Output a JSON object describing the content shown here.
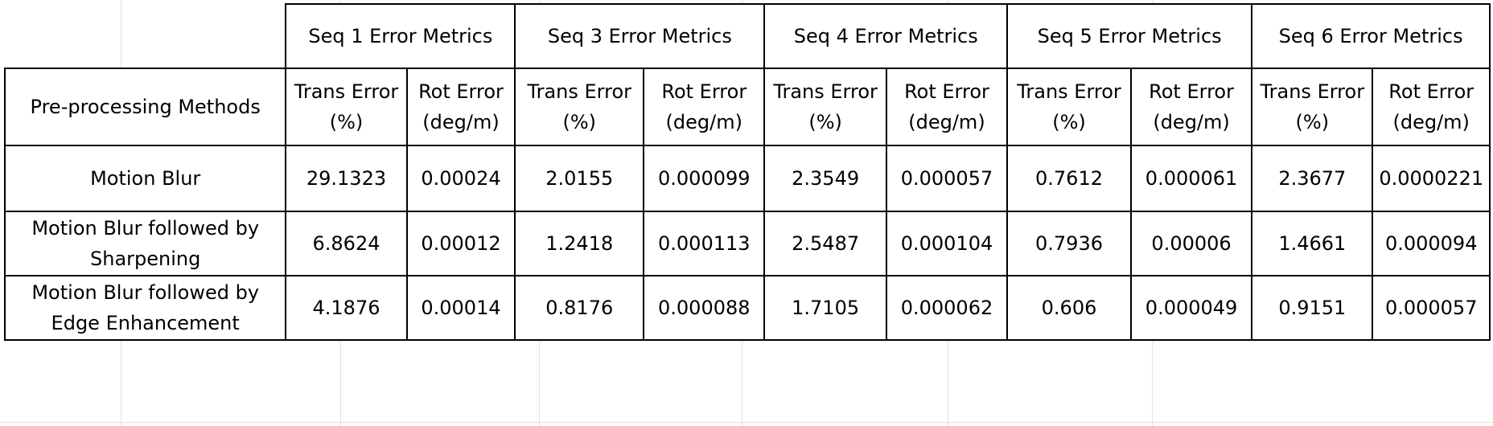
{
  "table": {
    "corner": "",
    "row_header_label": "Pre-processing Methods",
    "groups": [
      "Seq 1 Error Metrics",
      "Seq 3 Error Metrics",
      "Seq 4 Error Metrics",
      "Seq 5 Error Metrics",
      "Seq 6 Error Metrics"
    ],
    "subheaders": {
      "trans_line1": "Trans Error",
      "trans_line2": "(%)",
      "rot_line1": "Rot Error",
      "rot_line2": "(deg/m)"
    },
    "rows": [
      {
        "method_line1": "Motion Blur",
        "method_line2": "",
        "values": [
          "29.1323",
          "0.00024",
          "2.0155",
          "0.000099",
          "2.3549",
          "0.000057",
          "0.7612",
          "0.000061",
          "2.3677",
          "0.0000221"
        ]
      },
      {
        "method_line1": "Motion Blur followed by",
        "method_line2": "Sharpening",
        "values": [
          "6.8624",
          "0.00012",
          "1.2418",
          "0.000113",
          "2.5487",
          "0.000104",
          "0.7936",
          "0.00006",
          "1.4661",
          "0.000094"
        ]
      },
      {
        "method_line1": "Motion Blur followed by",
        "method_line2": "Edge Enhancement",
        "values": [
          "4.1876",
          "0.00014",
          "0.8176",
          "0.000088",
          "1.7105",
          "0.000062",
          "0.606",
          "0.000049",
          "0.9151",
          "0.000057"
        ]
      }
    ]
  }
}
